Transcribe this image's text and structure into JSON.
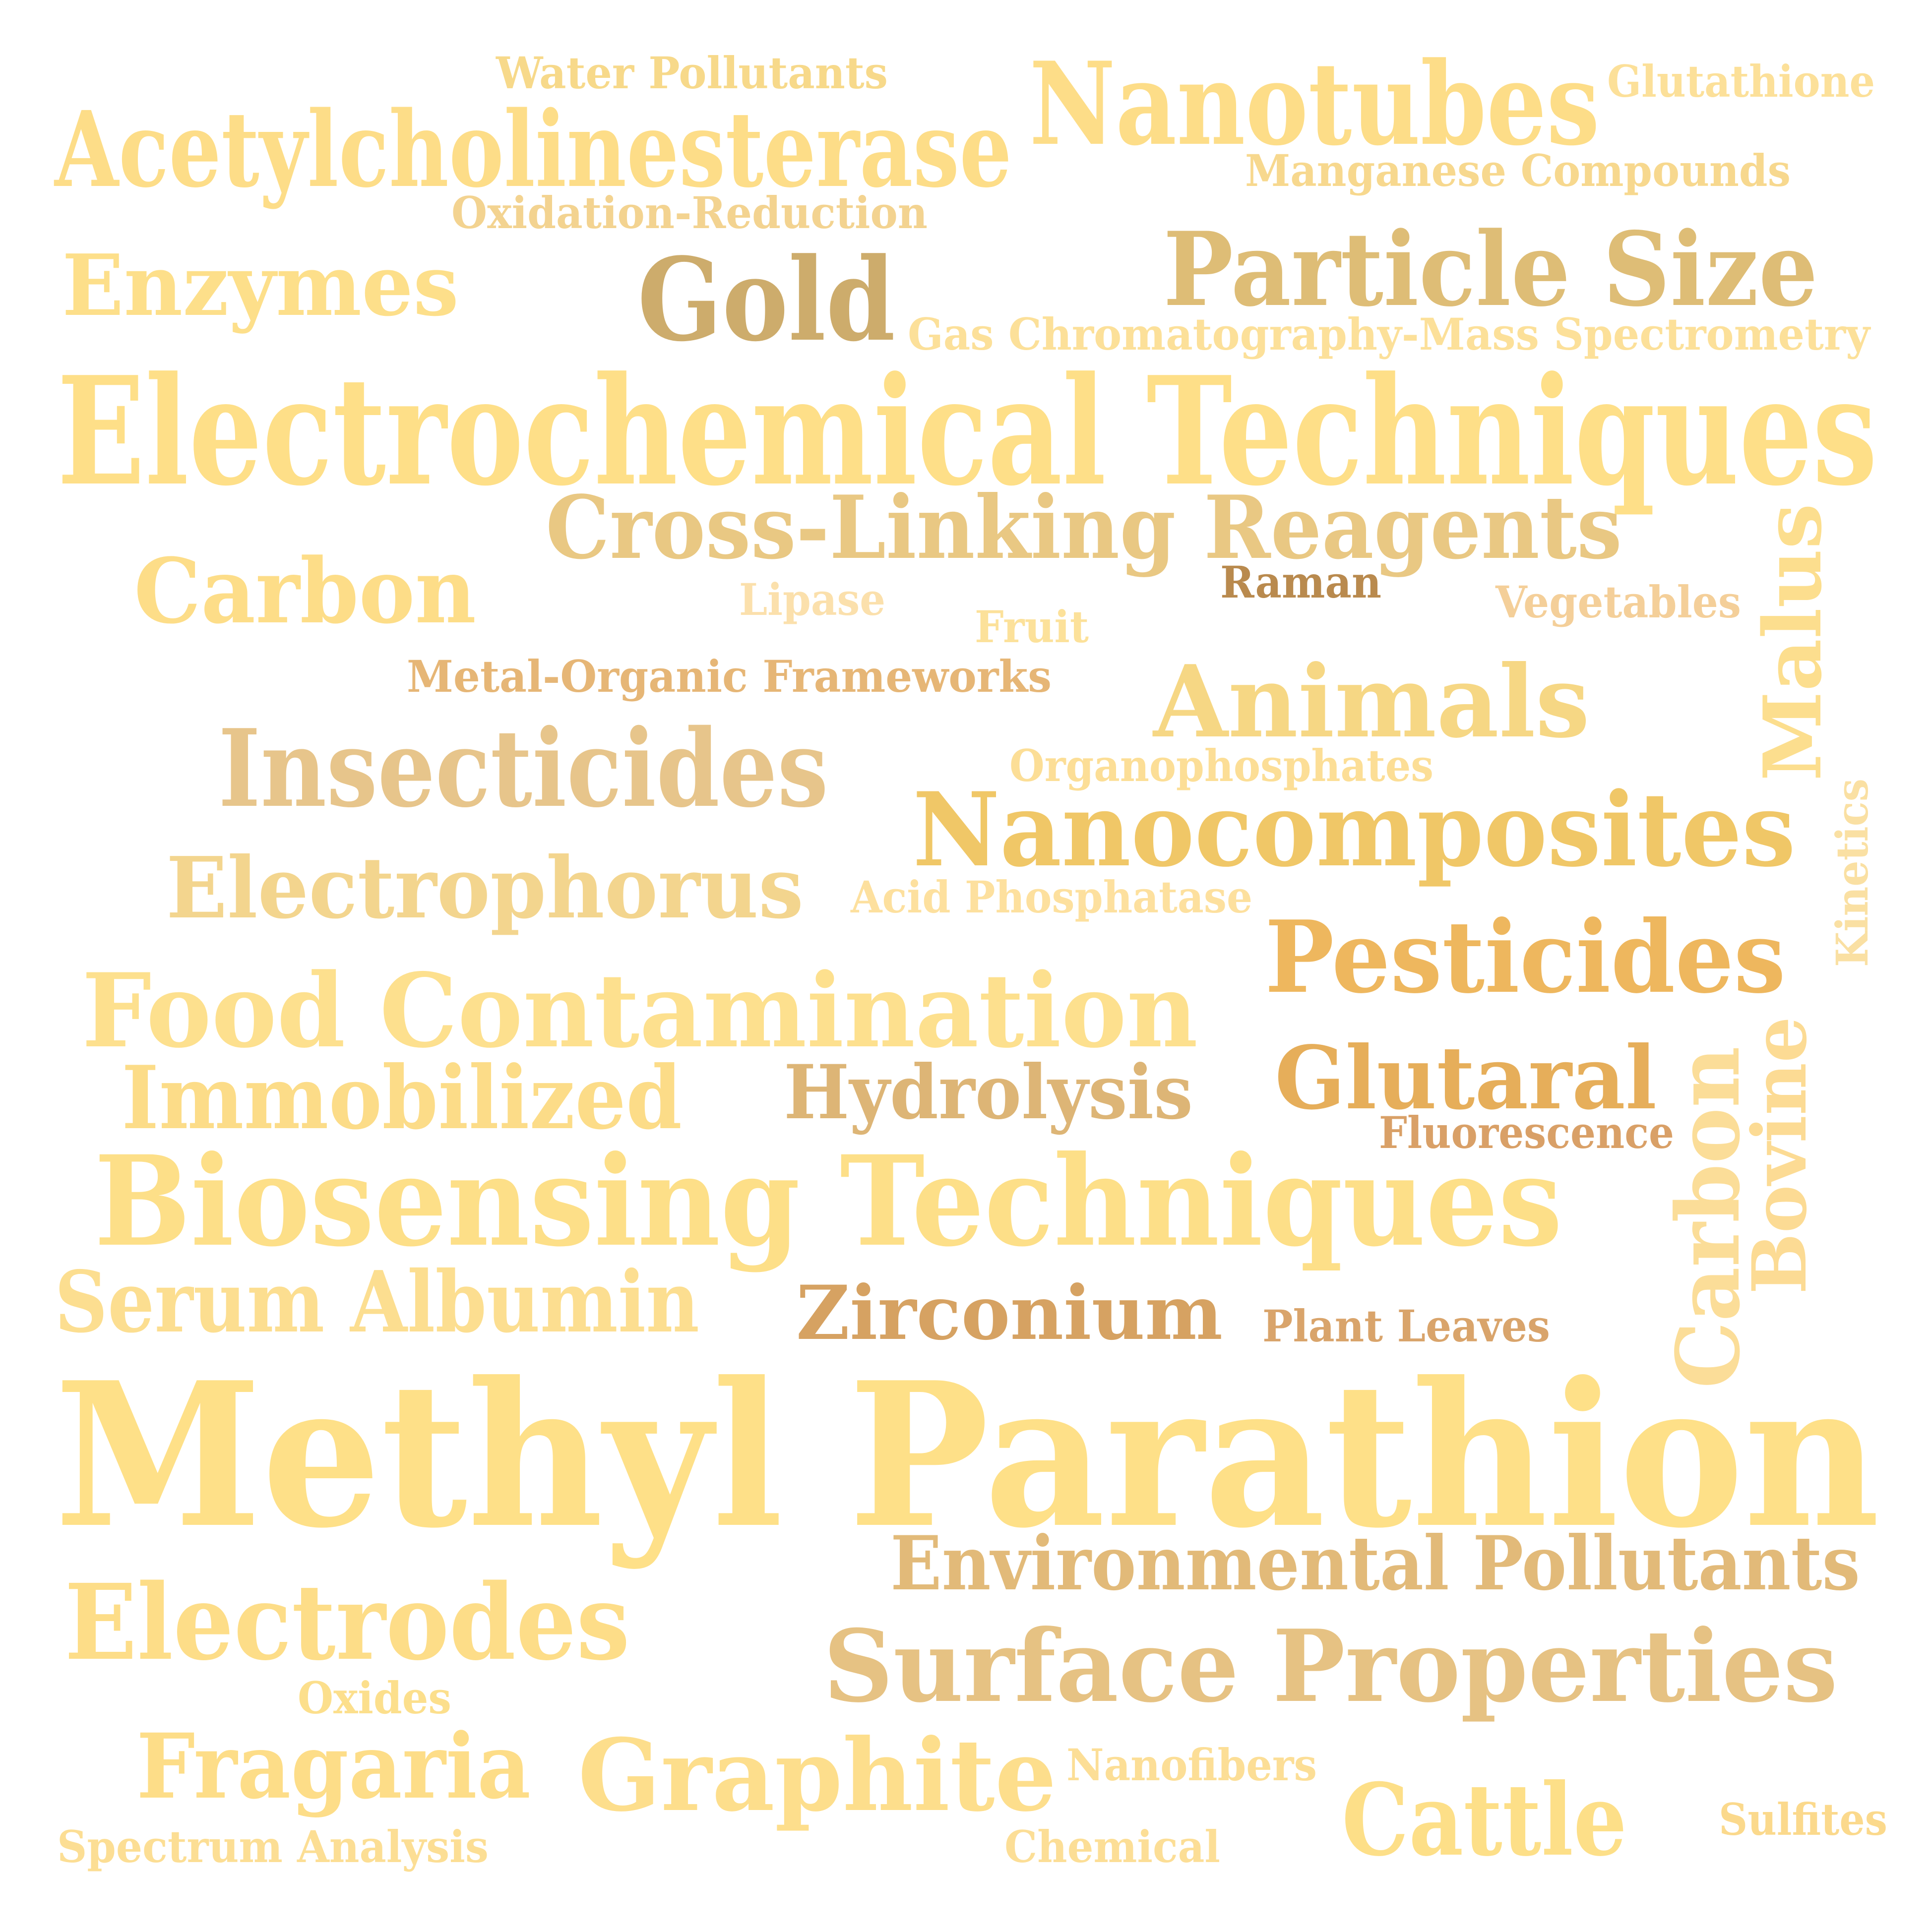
{
  "word_cloud": {
    "words": [
      {
        "id": "water-pollutants",
        "text": "Water Pollutants",
        "color": "#F7D98A"
      },
      {
        "id": "nanotubes",
        "text": "Nanotubes",
        "color": "#FDDD88"
      },
      {
        "id": "glutathione",
        "text": "Glutathione",
        "color": "#FCE099"
      },
      {
        "id": "acetylcholinesterase",
        "text": "Acetylcholinesterase",
        "color": "#FDDD88"
      },
      {
        "id": "manganese-compounds",
        "text": "Manganese Compounds",
        "color": "#F7D88E"
      },
      {
        "id": "oxidation-reduction",
        "text": "Oxidation-Reduction",
        "color": "#F3D390"
      },
      {
        "id": "enzymes",
        "text": "Enzymes",
        "color": "#FDDF8A"
      },
      {
        "id": "gold",
        "text": "Gold",
        "color": "#CDAC6C"
      },
      {
        "id": "particle-size",
        "text": "Particle Size",
        "color": "#DEBD76"
      },
      {
        "id": "gas-chromatography",
        "text": "Gas Chromatography-Mass Spectrometry",
        "color": "#FCE099"
      },
      {
        "id": "electrochemical-techniques",
        "text": "Electrochemical Techniques",
        "color": "#FEDF88"
      },
      {
        "id": "cross-linking-reagents",
        "text": "Cross-Linking Reagents",
        "color": "#E9C883"
      },
      {
        "id": "carbon-1",
        "text": "Carbon",
        "color": "#FDDD88"
      },
      {
        "id": "lipase",
        "text": "Lipase",
        "color": "#FBE0AC"
      },
      {
        "id": "raman",
        "text": "Raman",
        "color": "#B98A4E"
      },
      {
        "id": "vegetables",
        "text": "Vegetables",
        "color": "#F4CF99"
      },
      {
        "id": "malus",
        "text": "Malus",
        "color": "#FCDE8E"
      },
      {
        "id": "fruit",
        "text": "Fruit",
        "color": "#FCE19A"
      },
      {
        "id": "metal-organic-frameworks",
        "text": "Metal-Organic Frameworks",
        "color": "#E6B676"
      },
      {
        "id": "animals",
        "text": "Animals",
        "color": "#F6D784"
      },
      {
        "id": "insecticides",
        "text": "Insecticides",
        "color": "#E7C58B"
      },
      {
        "id": "organophosphates",
        "text": "Organophosphates",
        "color": "#FCDE96"
      },
      {
        "id": "nanocomposites",
        "text": "Nanocomposites",
        "color": "#F0C767"
      },
      {
        "id": "kinetics",
        "text": "Kinetics",
        "color": "#FAE0A3"
      },
      {
        "id": "electrophorus",
        "text": "Electrophorus",
        "color": "#F3D58E"
      },
      {
        "id": "acid-phosphatase",
        "text": "Acid Phosphatase",
        "color": "#FDE09E"
      },
      {
        "id": "pesticides",
        "text": "Pesticides",
        "color": "#EEB75E"
      },
      {
        "id": "food-contamination",
        "text": "Food Contamination",
        "color": "#FDE08E"
      },
      {
        "id": "glutaral",
        "text": "Glutaral",
        "color": "#E6AE5A"
      },
      {
        "id": "bovine",
        "text": "Bovine",
        "color": "#FCDB94"
      },
      {
        "id": "immobilized",
        "text": "Immobilized",
        "color": "#FCDC88"
      },
      {
        "id": "hydrolysis",
        "text": "Hydrolysis",
        "color": "#DDB576"
      },
      {
        "id": "carbon-2",
        "text": "Carbon",
        "color": "#FBDD98"
      },
      {
        "id": "fluorescence",
        "text": "Fluorescence",
        "color": "#D9A067"
      },
      {
        "id": "biosensing-techniques",
        "text": "Biosensing Techniques",
        "color": "#FDDF88"
      },
      {
        "id": "serum-albumin",
        "text": "Serum Albumin",
        "color": "#FCDE90"
      },
      {
        "id": "zirconium",
        "text": "Zirconium",
        "color": "#D6A262"
      },
      {
        "id": "plant-leaves",
        "text": "Plant Leaves",
        "color": "#D9A46B"
      },
      {
        "id": "methyl-parathion",
        "text": "Methyl Parathion",
        "color": "#FEE088"
      },
      {
        "id": "environmental-pollutants",
        "text": "Environmental Pollutants",
        "color": "#E2BA79"
      },
      {
        "id": "electrodes",
        "text": "Electrodes",
        "color": "#FDDD88"
      },
      {
        "id": "surface-properties",
        "text": "Surface Properties",
        "color": "#E6C283"
      },
      {
        "id": "oxides",
        "text": "Oxides",
        "color": "#FCDF8C"
      },
      {
        "id": "fragaria",
        "text": "Fragaria",
        "color": "#FDDD88"
      },
      {
        "id": "graphite",
        "text": "Graphite",
        "color": "#FDDE8C"
      },
      {
        "id": "nanofibers",
        "text": "Nanofibers",
        "color": "#FCDE96"
      },
      {
        "id": "cattle",
        "text": "Cattle",
        "color": "#FDDF88"
      },
      {
        "id": "sulfites",
        "text": "Sulfites",
        "color": "#FBD98C"
      },
      {
        "id": "spectrum-analysis",
        "text": "Spectrum Analysis",
        "color": "#FCDE94"
      },
      {
        "id": "chemical",
        "text": "Chemical",
        "color": "#FCDE96"
      }
    ]
  }
}
